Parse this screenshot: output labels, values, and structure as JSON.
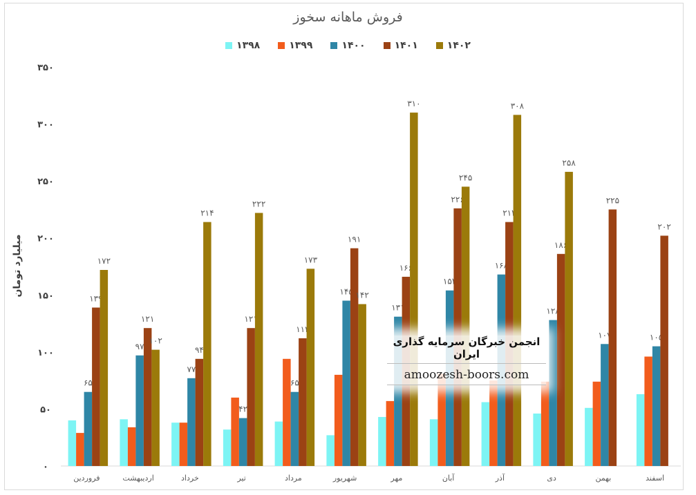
{
  "chart_data": {
    "type": "bar",
    "title": "فروش ماهانه سخوز",
    "ylabel": "میلیارد تومان",
    "xlabel": "",
    "ylim": [
      0,
      350
    ],
    "yticks": [
      {
        "value": 0,
        "label": "۰"
      },
      {
        "value": 50,
        "label": "۵۰"
      },
      {
        "value": 100,
        "label": "۱۰۰"
      },
      {
        "value": 150,
        "label": "۱۵۰"
      },
      {
        "value": 200,
        "label": "۲۰۰"
      },
      {
        "value": 250,
        "label": "۲۵۰"
      },
      {
        "value": 300,
        "label": "۳۰۰"
      },
      {
        "value": 350,
        "label": "۳۵۰"
      }
    ],
    "categories": [
      "فروردین",
      "اردیبهشت",
      "خرداد",
      "تیر",
      "مرداد",
      "شهریور",
      "مهر",
      "آبان",
      "آذر",
      "دی",
      "بهمن",
      "اسفند"
    ],
    "series": [
      {
        "name": "۱۳۹۸",
        "color": "#7df4f4",
        "values": [
          40,
          41,
          38,
          32,
          39,
          27,
          43,
          41,
          56,
          46,
          51,
          63
        ],
        "labels": [
          "",
          "",
          "",
          "",
          "",
          "",
          "",
          "",
          "",
          "",
          "",
          ""
        ]
      },
      {
        "name": "۱۳۹۹",
        "color": "#f25c1c",
        "values": [
          29,
          34,
          38,
          60,
          94,
          80,
          57,
          81,
          75,
          74,
          74,
          96
        ],
        "labels": [
          "",
          "",
          "",
          "",
          "",
          "",
          "",
          "",
          "",
          "",
          "",
          ""
        ]
      },
      {
        "name": "۱۴۰۰",
        "color": "#2f86a6",
        "values": [
          65,
          97,
          77,
          42,
          65,
          145,
          131,
          154,
          168,
          128,
          107,
          105
        ],
        "labels": [
          "۶۵",
          "۹۷",
          "۷۷",
          "۴۲",
          "۶۵",
          "۱۴۵",
          "۱۳۱",
          "۱۵۴",
          "۱۶۸",
          "۱۲۸",
          "۱۰۷",
          "۱۰۵"
        ]
      },
      {
        "name": "۱۴۰۱",
        "color": "#9b4214",
        "values": [
          139,
          121,
          94,
          121,
          112,
          191,
          166,
          226,
          214,
          186,
          225,
          202
        ],
        "labels": [
          "۱۳۹",
          "۱۲۱",
          "۹۴",
          "۱۲۱",
          "۱۱۲",
          "۱۹۱",
          "۱۶۶",
          "۲۲۶",
          "۲۱۴",
          "۱۸۶",
          "۲۲۵",
          "۲۰۲"
        ]
      },
      {
        "name": "۱۴۰۲",
        "color": "#9b7a0a",
        "values": [
          172,
          102,
          214,
          222,
          173,
          142,
          310,
          245,
          308,
          258,
          null,
          null
        ],
        "labels": [
          "۱۷۲",
          "۱۰۲",
          "۲۱۴",
          "۲۲۲",
          "۱۷۳",
          "۱۴۲",
          "۳۱۰",
          "۲۴۵",
          "۳۰۸",
          "۲۵۸",
          "",
          ""
        ]
      }
    ],
    "grid": false,
    "legend": "top-center"
  },
  "watermark": {
    "title": "انجمن خبرگان سرمایه گذاری ایران",
    "url": "amoozesh-boors.com"
  }
}
